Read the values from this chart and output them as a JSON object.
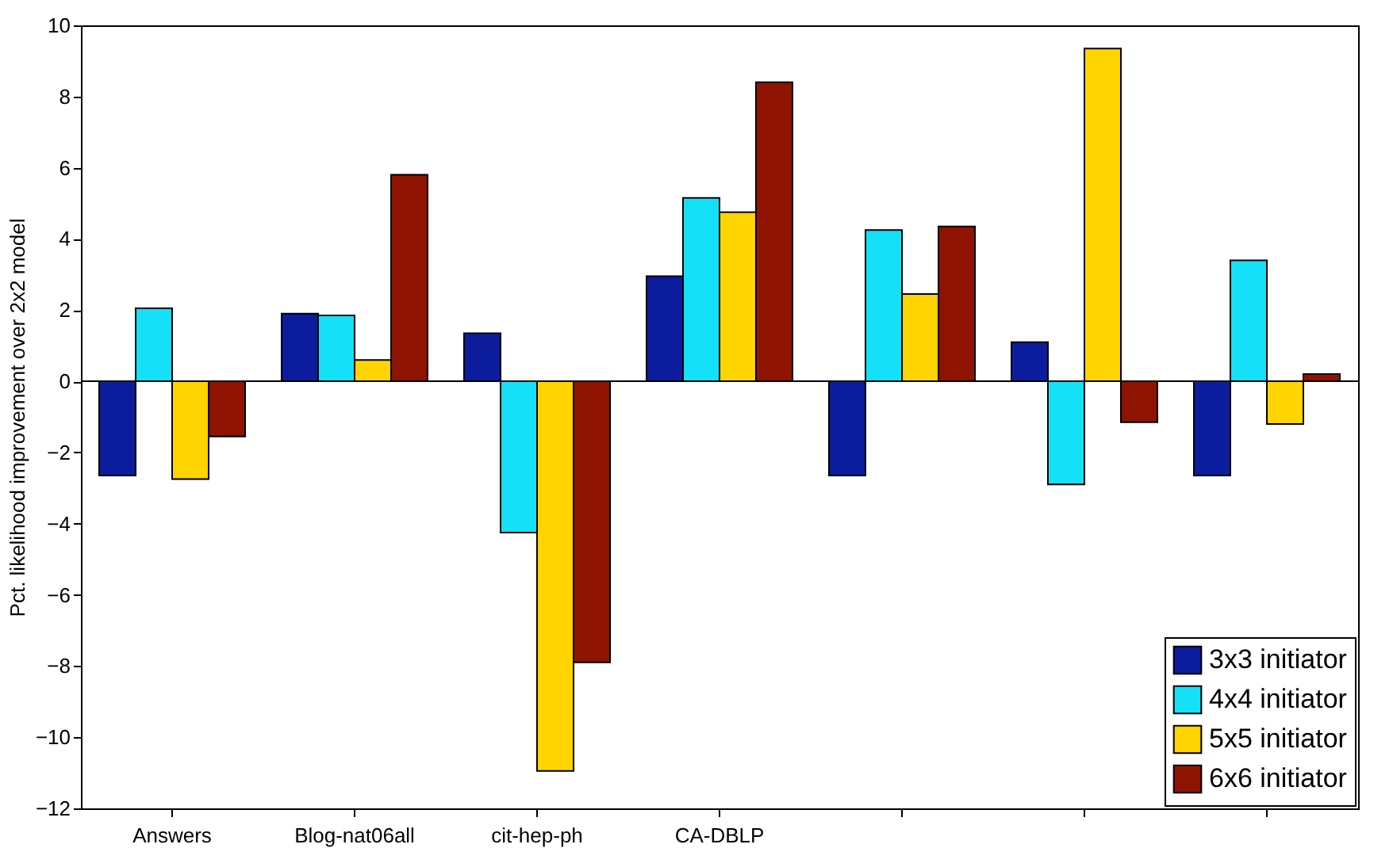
{
  "chart_data": {
    "type": "bar",
    "ylabel": "Pct. likelihood improvement over 2x2 model",
    "categories": [
      "Answers",
      "Blog-nat06all",
      "cit-hep-ph",
      "CA-DBLP",
      null,
      null,
      null
    ],
    "series": [
      {
        "name": "3x3 initiator",
        "color": "#0b1c9c",
        "values": [
          -2.65,
          1.9,
          1.35,
          2.95,
          -2.65,
          1.1,
          -2.65
        ]
      },
      {
        "name": "4x4 initiator",
        "color": "#14e1f7",
        "values": [
          2.05,
          1.85,
          -4.25,
          5.15,
          4.25,
          -2.9,
          3.4
        ]
      },
      {
        "name": "5x5 initiator",
        "color": "#ffd400",
        "values": [
          -2.75,
          0.6,
          -10.95,
          4.75,
          2.45,
          9.35,
          -1.2
        ]
      },
      {
        "name": "6x6 initiator",
        "color": "#8e1300",
        "values": [
          -1.55,
          5.8,
          -7.9,
          8.4,
          4.35,
          -1.15,
          0.2
        ]
      }
    ],
    "ylim": [
      -12,
      10
    ],
    "yticks": [
      -12,
      -10,
      -8,
      -6,
      -4,
      -2,
      0,
      2,
      4,
      6,
      8,
      10
    ],
    "ref_lines": [
      {
        "axis": "y",
        "value": 0
      }
    ],
    "legend": "bottom right"
  }
}
